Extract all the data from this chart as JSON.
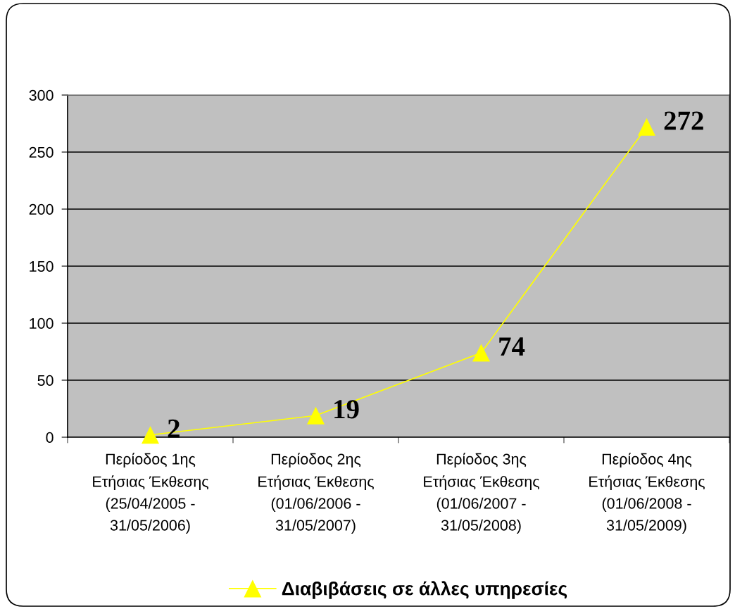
{
  "chart_data": {
    "type": "line",
    "categories": [
      "Περίοδος 1ης\nΕτήσιας Έκθεσης\n(25/04/2005 -\n31/05/2006)",
      "Περίοδος 2ης\nΕτήσιας Έκθεσης\n(01/06/2006 -\n31/05/2007)",
      "Περίοδος 3ης\nΕτήσιας Έκθεσης\n(01/06/2007 -\n31/05/2008)",
      "Περίοδος 4ης\nΕτήσιας Έκθεσης\n(01/06/2008 -\n31/05/2009)"
    ],
    "series": [
      {
        "name": "Διαβιβάσεις σε άλλες υπηρεσίες",
        "color": "#ffff00",
        "values": [
          2,
          19,
          74,
          272
        ]
      }
    ],
    "ylim": [
      0,
      300
    ],
    "yticks": [
      0,
      50,
      100,
      150,
      200,
      250,
      300
    ],
    "grid": "y",
    "legend": "bottom",
    "marker": "triangle",
    "line_style": "solid",
    "data_labels": true
  }
}
